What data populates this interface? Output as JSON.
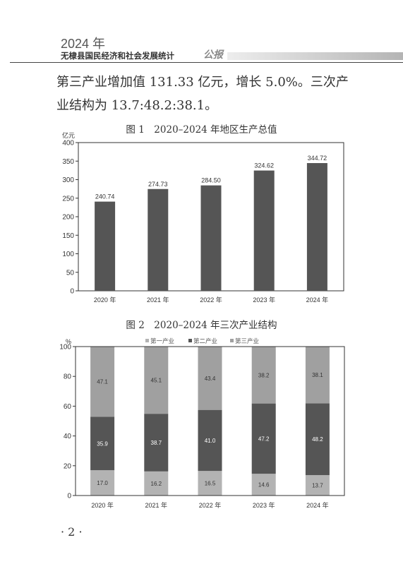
{
  "header": {
    "year": "2024 年",
    "title": "无棣县国民经济和社会发展统计",
    "title_suffix": "公报"
  },
  "body": {
    "line1": "第三产业增加值 131.33 亿元，增长 5.0%。三次产",
    "line2": "业结构为 13.7:48.2:38.1。"
  },
  "page_number": "· 2 ·",
  "chart_data": [
    {
      "type": "bar",
      "title": "图 1　2020–2024 年地区生产总值",
      "ylabel": "亿元",
      "categories": [
        "2020 年",
        "2021 年",
        "2022 年",
        "2023 年",
        "2024 年"
      ],
      "values": [
        240.74,
        274.73,
        284.5,
        324.62,
        344.72
      ],
      "value_labels": [
        "240.74",
        "274.73",
        "284.50",
        "324.62",
        "344.72"
      ],
      "ylim": [
        0,
        400
      ],
      "yticks": [
        "0",
        "50",
        "100",
        "150",
        "200",
        "250",
        "300",
        "350",
        "400"
      ],
      "grid": false,
      "colors": {
        "bar": "#555555"
      }
    },
    {
      "type": "bar",
      "stacked": true,
      "title": "图 2　2020–2024 年三次产业结构",
      "ylabel": "%",
      "categories": [
        "2020 年",
        "2021 年",
        "2022 年",
        "2023 年",
        "2024 年"
      ],
      "series": [
        {
          "name": "第一产业",
          "color": "#b3b3b3",
          "values": [
            17.0,
            16.2,
            16.5,
            14.6,
            13.7
          ],
          "labels": [
            "17.0",
            "16.2",
            "16.5",
            "14.6",
            "13.7"
          ],
          "label_color": "#333333"
        },
        {
          "name": "第二产业",
          "color": "#555555",
          "values": [
            35.9,
            38.7,
            41.0,
            47.2,
            48.2
          ],
          "labels": [
            "35.9",
            "38.7",
            "41.0",
            "47.2",
            "48.2"
          ],
          "label_color": "#ffffff"
        },
        {
          "name": "第三产业",
          "color": "#a0a0a0",
          "values": [
            47.1,
            45.1,
            43.4,
            38.2,
            38.1
          ],
          "labels": [
            "47.1",
            "45.1",
            "43.4",
            "38.2",
            "38.1"
          ],
          "label_color": "#333333"
        }
      ],
      "ylim": [
        0,
        100
      ],
      "yticks": [
        "0",
        "20",
        "40",
        "60",
        "80",
        "100"
      ],
      "legend_position": "top-center",
      "grid": false
    }
  ]
}
